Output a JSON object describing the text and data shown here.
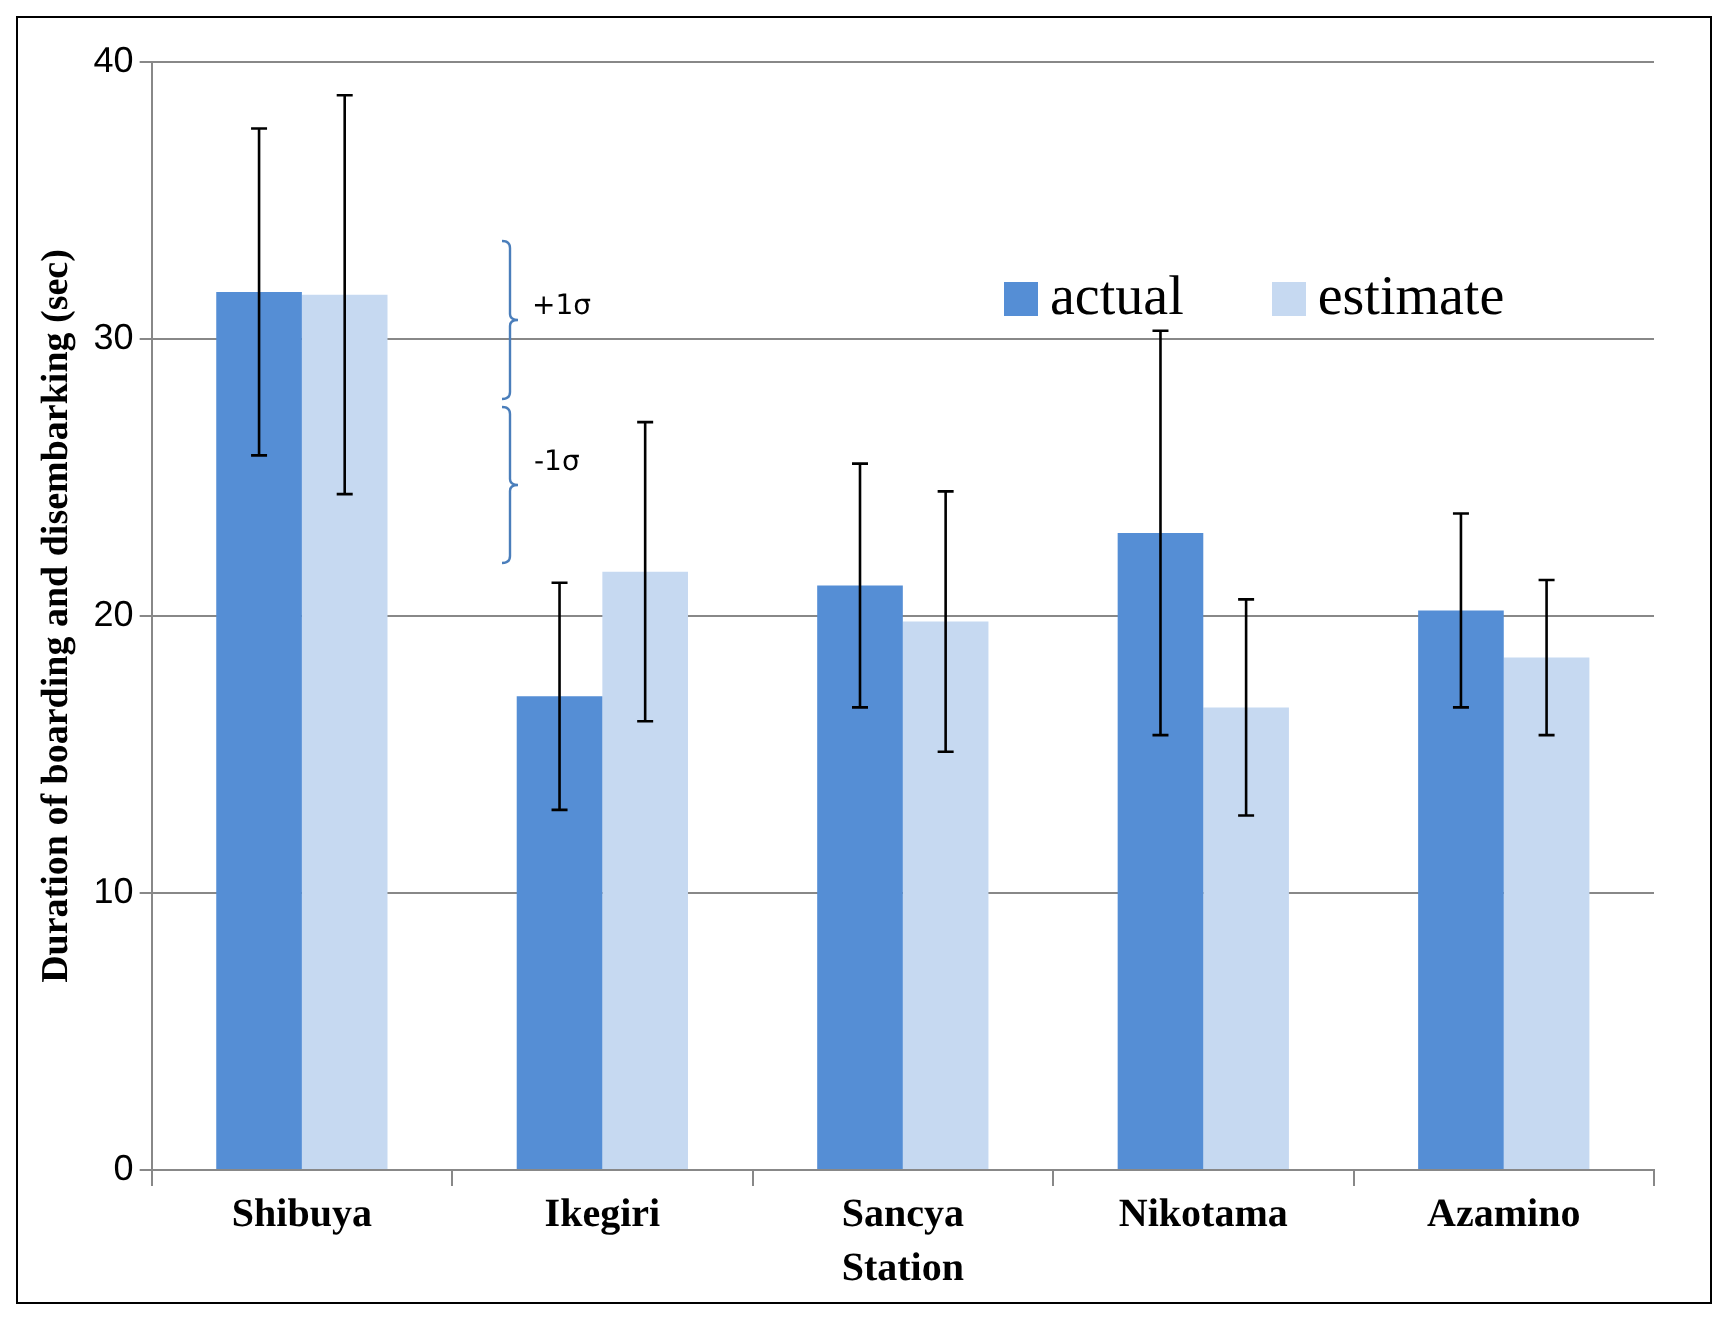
{
  "chart_data": {
    "type": "bar",
    "xlabel": "Station",
    "ylabel": "Duration of boarding and disembarking (sec)",
    "categories": [
      "Shibuya",
      "Ikegiri",
      "Sancya",
      "Nikotama",
      "Azamino"
    ],
    "series": [
      {
        "name": "actual",
        "color": "#558ed5",
        "values": [
          31.7,
          17.1,
          21.1,
          23.0,
          20.2
        ],
        "errors": [
          5.9,
          4.1,
          4.4,
          7.3,
          3.5
        ]
      },
      {
        "name": "estimate",
        "color": "#c6d9f1",
        "values": [
          31.6,
          21.6,
          19.8,
          16.7,
          18.5
        ],
        "errors": [
          7.2,
          5.4,
          4.7,
          3.9,
          2.8
        ]
      }
    ],
    "ylim": [
      0,
      40
    ],
    "yticks": [
      0,
      10,
      20,
      30,
      40
    ],
    "grid": "y",
    "legend": "top right",
    "annotations": [
      "+1σ",
      "-1σ"
    ]
  }
}
